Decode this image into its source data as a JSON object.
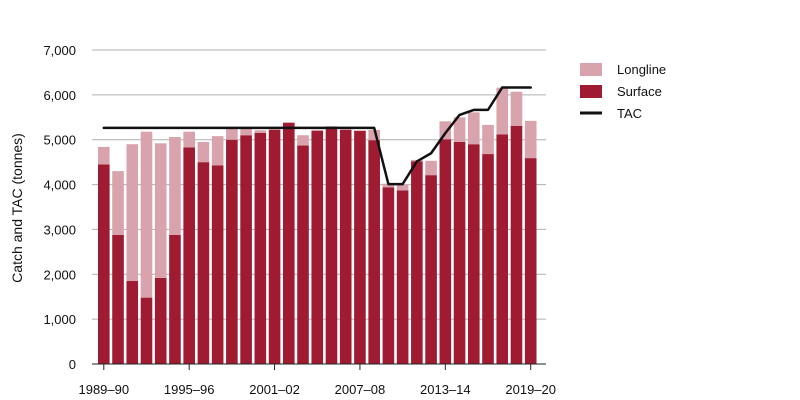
{
  "chart_data": {
    "type": "bar",
    "ylabel": "Catch and TAC (tonnes)",
    "ylim": [
      0,
      7000
    ],
    "y_ticks": [
      "0",
      "1,000",
      "2,000",
      "3,000",
      "4,000",
      "5,000",
      "6,000",
      "7,000"
    ],
    "x_tick_labels": [
      "1989–90",
      "1995–96",
      "2001–02",
      "2007–08",
      "2013–14",
      "2019–20"
    ],
    "categories": [
      "1989–90",
      "1990–91",
      "1991–92",
      "1992–93",
      "1993–94",
      "1994–95",
      "1995–96",
      "1996–97",
      "1997–98",
      "1998–99",
      "1999–00",
      "2000–01",
      "2001–02",
      "2002–03",
      "2003–04",
      "2004–05",
      "2005–06",
      "2006–07",
      "2007–08",
      "2008–09",
      "2009–10",
      "2010–11",
      "2011–12",
      "2012–13",
      "2013–14",
      "2014–15",
      "2015–16",
      "2016–17",
      "2017–18",
      "2018–19",
      "2019–20"
    ],
    "grid": "horizontal",
    "legend_position": "right",
    "colors": {
      "Longline": "#d8a3ac",
      "Surface": "#9e1b32",
      "TAC": "#111111",
      "grid": "#b0b0b0",
      "axis": "#222222"
    },
    "series": [
      {
        "name": "Surface",
        "type": "bar",
        "stacked": true,
        "values": [
          4450,
          2880,
          1850,
          1480,
          1920,
          2880,
          4830,
          4500,
          4430,
          5000,
          5100,
          5150,
          5220,
          5380,
          4870,
          5200,
          5280,
          5220,
          5200,
          4990,
          3940,
          3870,
          4520,
          4210,
          5010,
          4950,
          4900,
          4680,
          5120,
          5310,
          4590
        ]
      },
      {
        "name": "Longline",
        "type": "bar",
        "stacked": true,
        "values": [
          390,
          1420,
          3050,
          3700,
          3000,
          2180,
          350,
          450,
          650,
          260,
          150,
          60,
          30,
          0,
          230,
          20,
          20,
          20,
          0,
          230,
          80,
          130,
          30,
          320,
          400,
          550,
          710,
          650,
          1040,
          760,
          830
        ]
      },
      {
        "name": "TAC",
        "type": "line",
        "values": [
          5265,
          5265,
          5265,
          5265,
          5265,
          5265,
          5265,
          5265,
          5265,
          5265,
          5265,
          5265,
          5265,
          5265,
          5265,
          5265,
          5265,
          5265,
          5265,
          5265,
          4010,
          4010,
          4515,
          4698,
          5147,
          5553,
          5665,
          5665,
          6165,
          6165,
          6165
        ]
      }
    ]
  }
}
